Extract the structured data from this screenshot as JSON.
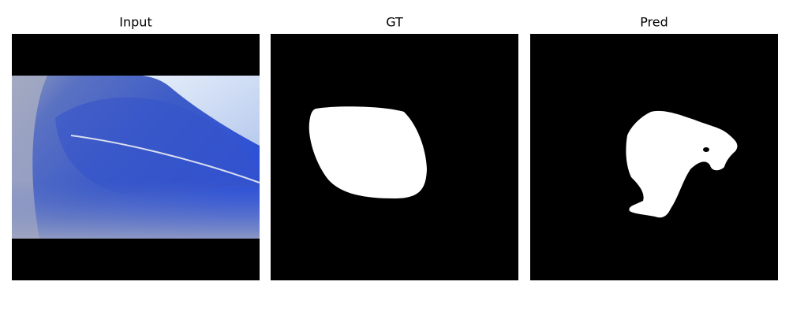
{
  "panels": [
    {
      "title": "Input"
    },
    {
      "title": "GT"
    },
    {
      "title": "Pred"
    }
  ]
}
